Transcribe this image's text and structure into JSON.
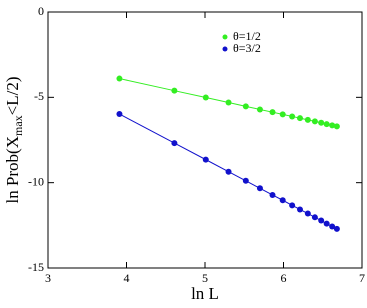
{
  "chart_data": {
    "type": "line",
    "x_label": "ln L",
    "y_label": {
      "text": "ln Prob(X",
      "subscript": "max",
      "text_after": "<L/2)"
    },
    "x": [
      3.91,
      4.61,
      5.01,
      5.3,
      5.52,
      5.7,
      5.86,
      5.99,
      6.11,
      6.21,
      6.31,
      6.4,
      6.48,
      6.55,
      6.62,
      6.68
    ],
    "series": [
      {
        "name": "θ=1/2",
        "color": "#33ee22",
        "values": [
          -3.9,
          -4.61,
          -5.01,
          -5.3,
          -5.53,
          -5.71,
          -5.87,
          -6.0,
          -6.12,
          -6.22,
          -6.32,
          -6.41,
          -6.49,
          -6.57,
          -6.64,
          -6.7
        ]
      },
      {
        "name": "θ=3/2",
        "color": "#1111cc",
        "values": [
          -5.98,
          -7.68,
          -8.65,
          -9.36,
          -9.89,
          -10.33,
          -10.72,
          -11.03,
          -11.33,
          -11.57,
          -11.81,
          -12.03,
          -12.22,
          -12.4,
          -12.57,
          -12.71
        ]
      }
    ],
    "xlim": [
      3,
      7
    ],
    "xticks": [
      3,
      4,
      5,
      6,
      7
    ],
    "ylim": [
      -15,
      0
    ],
    "yticks": [
      -15,
      -10,
      -5,
      0
    ],
    "legend": "upper right"
  }
}
